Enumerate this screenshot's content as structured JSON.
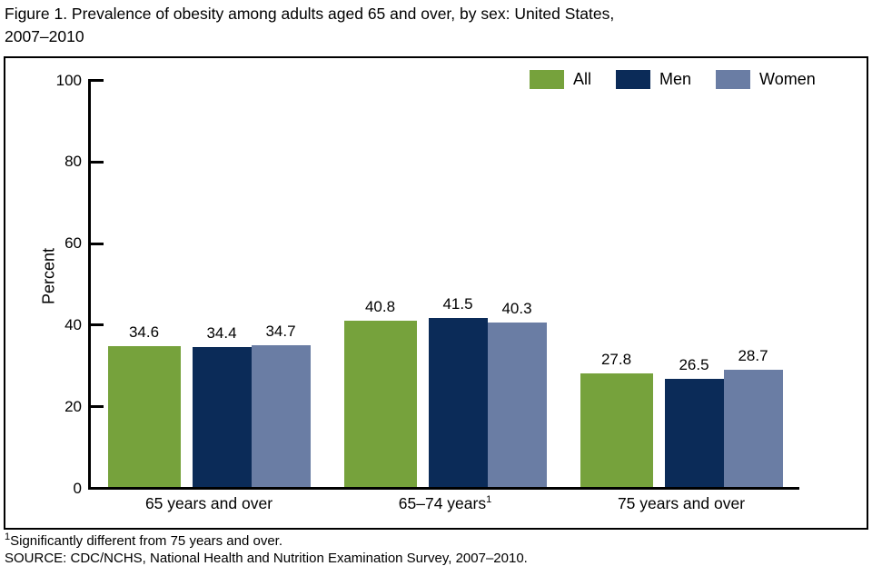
{
  "title": {
    "line1": "Figure 1. Prevalence of obesity among adults aged 65 and over, by sex: United States,",
    "line2": "2007–2010"
  },
  "footnotes": {
    "note1_sup": "1",
    "note1": "Significantly different from 75 years and over.",
    "source": "SOURCE: CDC/NCHS, National Health and Nutrition Examination Survey, 2007–2010."
  },
  "chart_data": {
    "type": "bar",
    "title": "Figure 1. Prevalence of obesity among adults aged 65 and over, by sex: United States, 2007–2010",
    "ylabel": "Percent",
    "xlabel": "",
    "ylim": [
      0,
      100
    ],
    "yticks": [
      0,
      20,
      40,
      60,
      80,
      100
    ],
    "grid": false,
    "legend_position": "top-right",
    "categories": [
      "65 years and over",
      "65–74 years",
      "75 years and over"
    ],
    "category_superscripts": [
      "",
      "1",
      ""
    ],
    "series": [
      {
        "name": "All",
        "color": "#76A23C",
        "values": [
          34.6,
          40.8,
          27.8
        ]
      },
      {
        "name": "Men",
        "color": "#0B2B58",
        "values": [
          34.4,
          41.5,
          26.5
        ]
      },
      {
        "name": "Women",
        "color": "#6A7DA4",
        "values": [
          34.7,
          40.3,
          28.7
        ]
      }
    ]
  }
}
